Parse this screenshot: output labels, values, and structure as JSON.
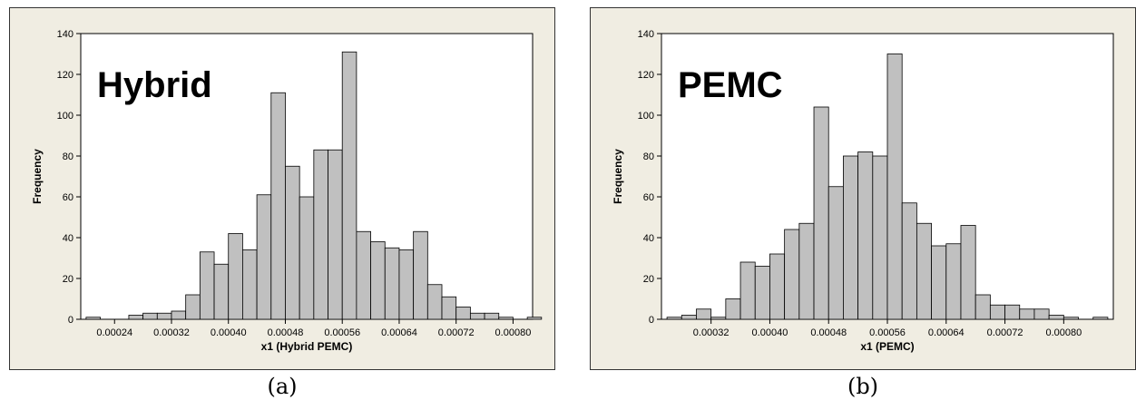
{
  "chart_data": [
    {
      "type": "bar",
      "annotation": "Hybrid",
      "xlabel": "x1 (Hybrid PEMC)",
      "ylabel": "Frequency",
      "caption": "(a)",
      "bin_start": 0.0002,
      "bin_width": 2e-05,
      "values": [
        1,
        0,
        0,
        2,
        3,
        3,
        4,
        12,
        33,
        27,
        42,
        34,
        61,
        111,
        75,
        60,
        83,
        83,
        131,
        43,
        38,
        35,
        34,
        43,
        17,
        11,
        6,
        3,
        3,
        1,
        0,
        1
      ],
      "ylim": [
        0,
        140
      ],
      "yticks": [
        "0",
        "20",
        "40",
        "60",
        "80",
        "100",
        "120",
        "140"
      ],
      "xticks": [
        0.00024,
        0.00032,
        0.0004,
        0.00048,
        0.00056,
        0.00064,
        0.00072,
        0.0008
      ],
      "xtick_labels": [
        "0.00024",
        "0.00032",
        "0.00040",
        "0.00048",
        "0.00056",
        "0.00064",
        "0.00072",
        "0.00080"
      ],
      "xlim": [
        0.0001925,
        0.0008275
      ],
      "bar_fill": "#c0c0c0",
      "grid": false
    },
    {
      "type": "bar",
      "annotation": "PEMC",
      "xlabel": "x1 (PEMC)",
      "ylabel": "Frequency",
      "caption": "(b)",
      "bin_start": 0.00026,
      "bin_width": 2e-05,
      "values": [
        1,
        2,
        5,
        1,
        10,
        28,
        26,
        32,
        44,
        47,
        104,
        65,
        80,
        82,
        80,
        130,
        57,
        47,
        36,
        37,
        46,
        12,
        7,
        7,
        5,
        5,
        2,
        1,
        0,
        1
      ],
      "ylim": [
        0,
        140
      ],
      "yticks": [
        "0",
        "20",
        "40",
        "60",
        "80",
        "100",
        "120",
        "140"
      ],
      "xticks": [
        0.00032,
        0.0004,
        0.00048,
        0.00056,
        0.00064,
        0.00072,
        0.0008
      ],
      "xtick_labels": [
        "0.00032",
        "0.00040",
        "0.00048",
        "0.00056",
        "0.00064",
        "0.00072",
        "0.00080"
      ],
      "xlim": [
        0.0002525,
        0.0008675
      ],
      "bar_fill": "#c0c0c0",
      "grid": false
    }
  ]
}
